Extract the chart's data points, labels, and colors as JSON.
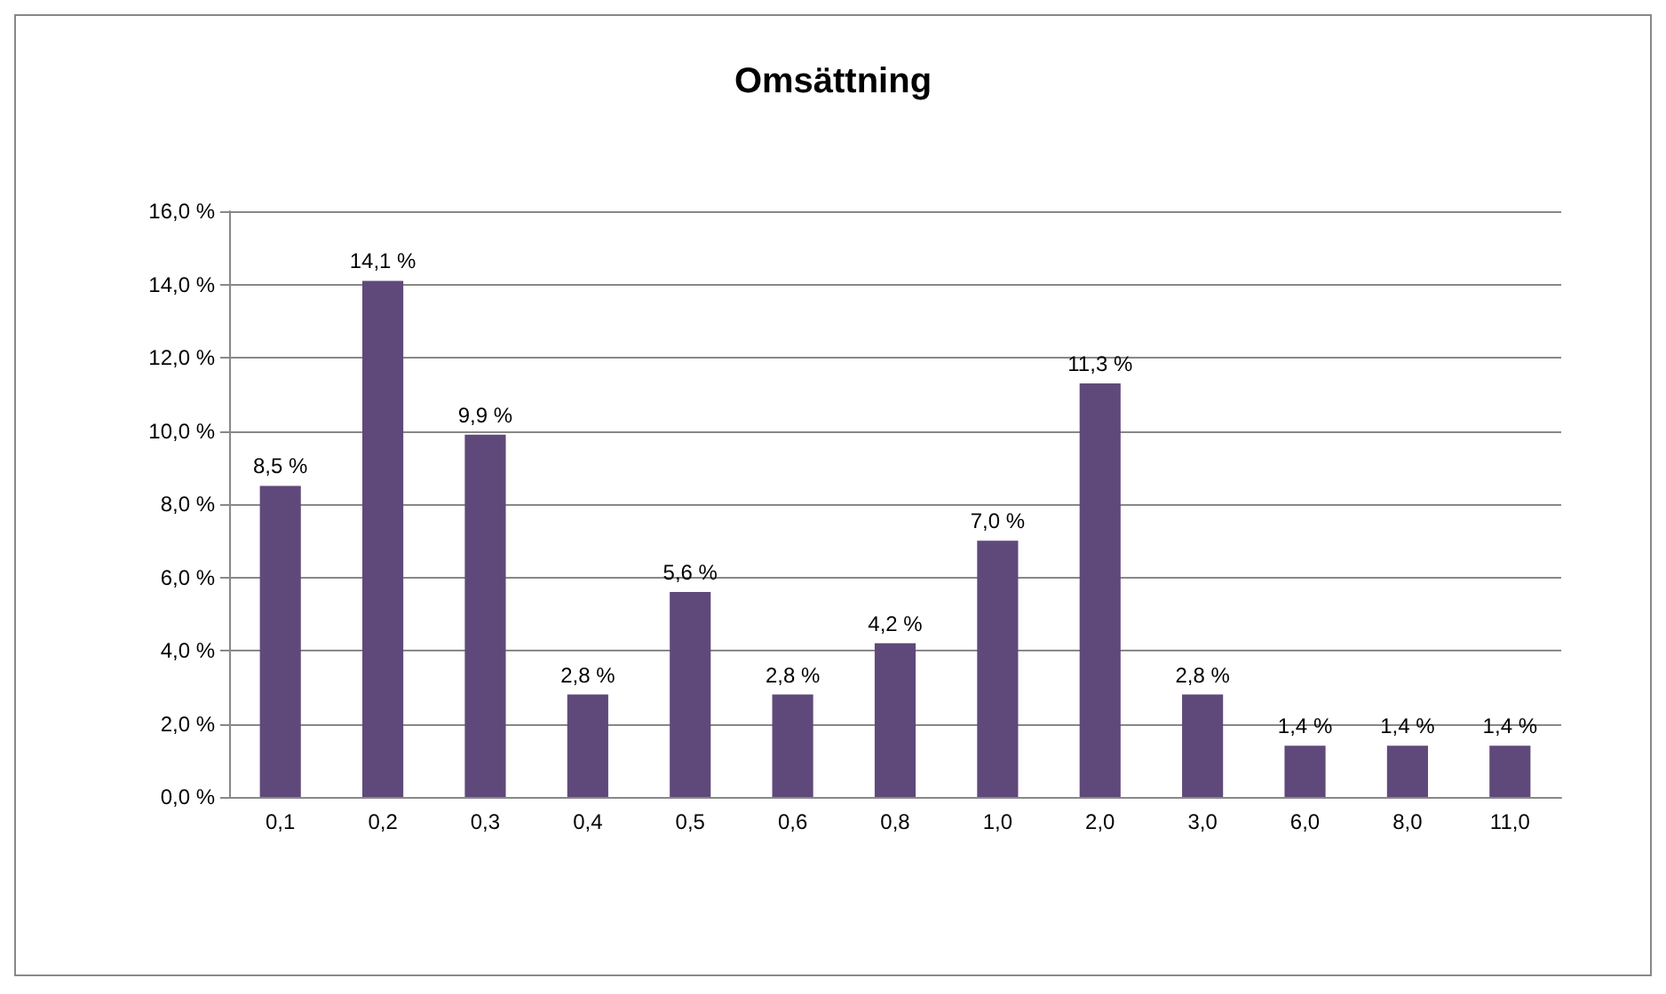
{
  "chart_data": {
    "type": "bar",
    "title": "Omsättning",
    "categories": [
      "0,1",
      "0,2",
      "0,3",
      "0,4",
      "0,5",
      "0,6",
      "0,8",
      "1,0",
      "2,0",
      "3,0",
      "6,0",
      "8,0",
      "11,0"
    ],
    "values": [
      8.5,
      14.1,
      9.9,
      2.8,
      5.6,
      2.8,
      4.2,
      7.0,
      11.3,
      2.8,
      1.4,
      1.4,
      1.4
    ],
    "value_labels": [
      "8,5 %",
      "14,1 %",
      "9,9 %",
      "2,8 %",
      "5,6 %",
      "2,8 %",
      "4,2 %",
      "7,0 %",
      "11,3 %",
      "2,8 %",
      "1,4 %",
      "1,4 %",
      "1,4 %"
    ],
    "color": "#5f497a",
    "ylim": [
      0,
      16
    ],
    "yticks": [
      {
        "value": 0,
        "label": "0,0 %"
      },
      {
        "value": 2,
        "label": "2,0 %"
      },
      {
        "value": 4,
        "label": "4,0 %"
      },
      {
        "value": 6,
        "label": "6,0 %"
      },
      {
        "value": 8,
        "label": "8,0 %"
      },
      {
        "value": 10,
        "label": "10,0 %"
      },
      {
        "value": 12,
        "label": "12,0 %"
      },
      {
        "value": 14,
        "label": "14,0 %"
      },
      {
        "value": 16,
        "label": "16,0 %"
      }
    ],
    "grid": "y"
  }
}
